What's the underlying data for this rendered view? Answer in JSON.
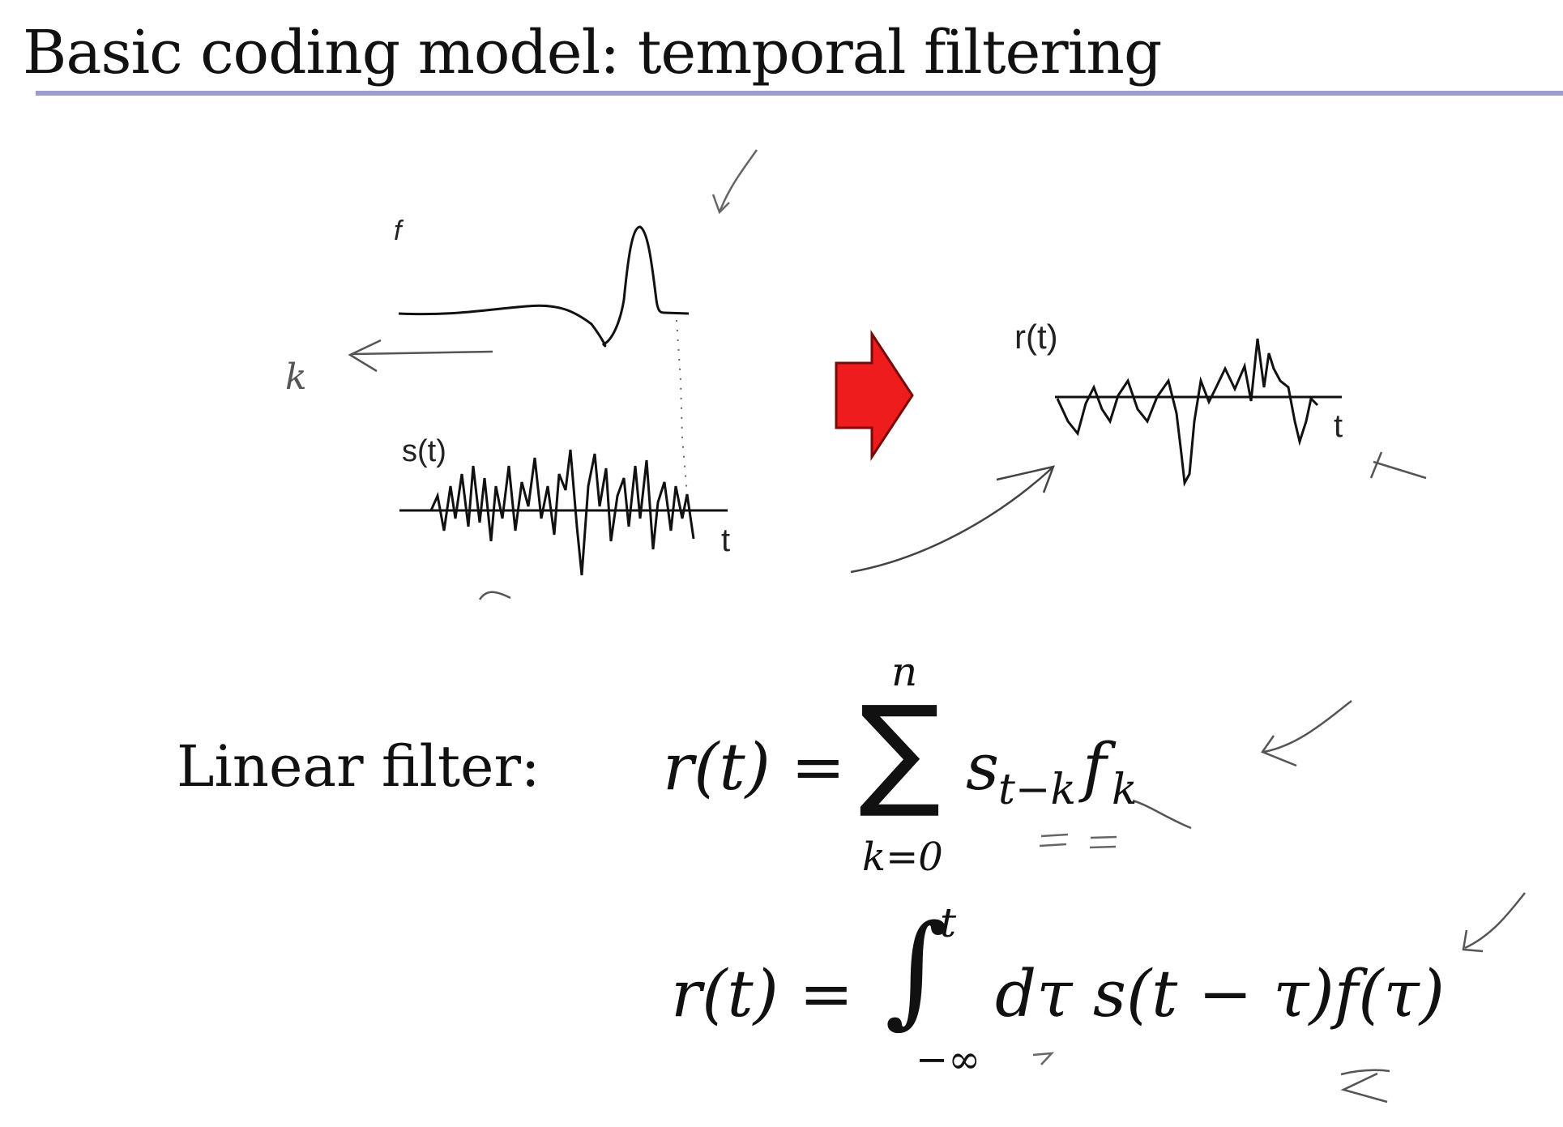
{
  "slide": {
    "title": "Basic coding model: temporal filtering"
  },
  "diagram": {
    "filter_label": "f",
    "stimulus_label": "s(t)",
    "stimulus_axis_label": "t",
    "response_label": "r(t)",
    "response_axis_label": "t",
    "handwritten_k": "k",
    "arrow_color": "#ee1c1c"
  },
  "equations": {
    "label": "Linear filter:",
    "sum": {
      "lhs": "r(t) =",
      "upper": "n",
      "symbol": "∑",
      "lower": "k=0",
      "rhs_s": "s",
      "rhs_s_sub": "t−k",
      "rhs_f": "f",
      "rhs_f_sub": "k"
    },
    "integral": {
      "lhs": "r(t) =",
      "symbol": "∫",
      "upper": "t",
      "lower": "−∞",
      "rhs": "dτ s(t − τ)f(τ)"
    }
  }
}
